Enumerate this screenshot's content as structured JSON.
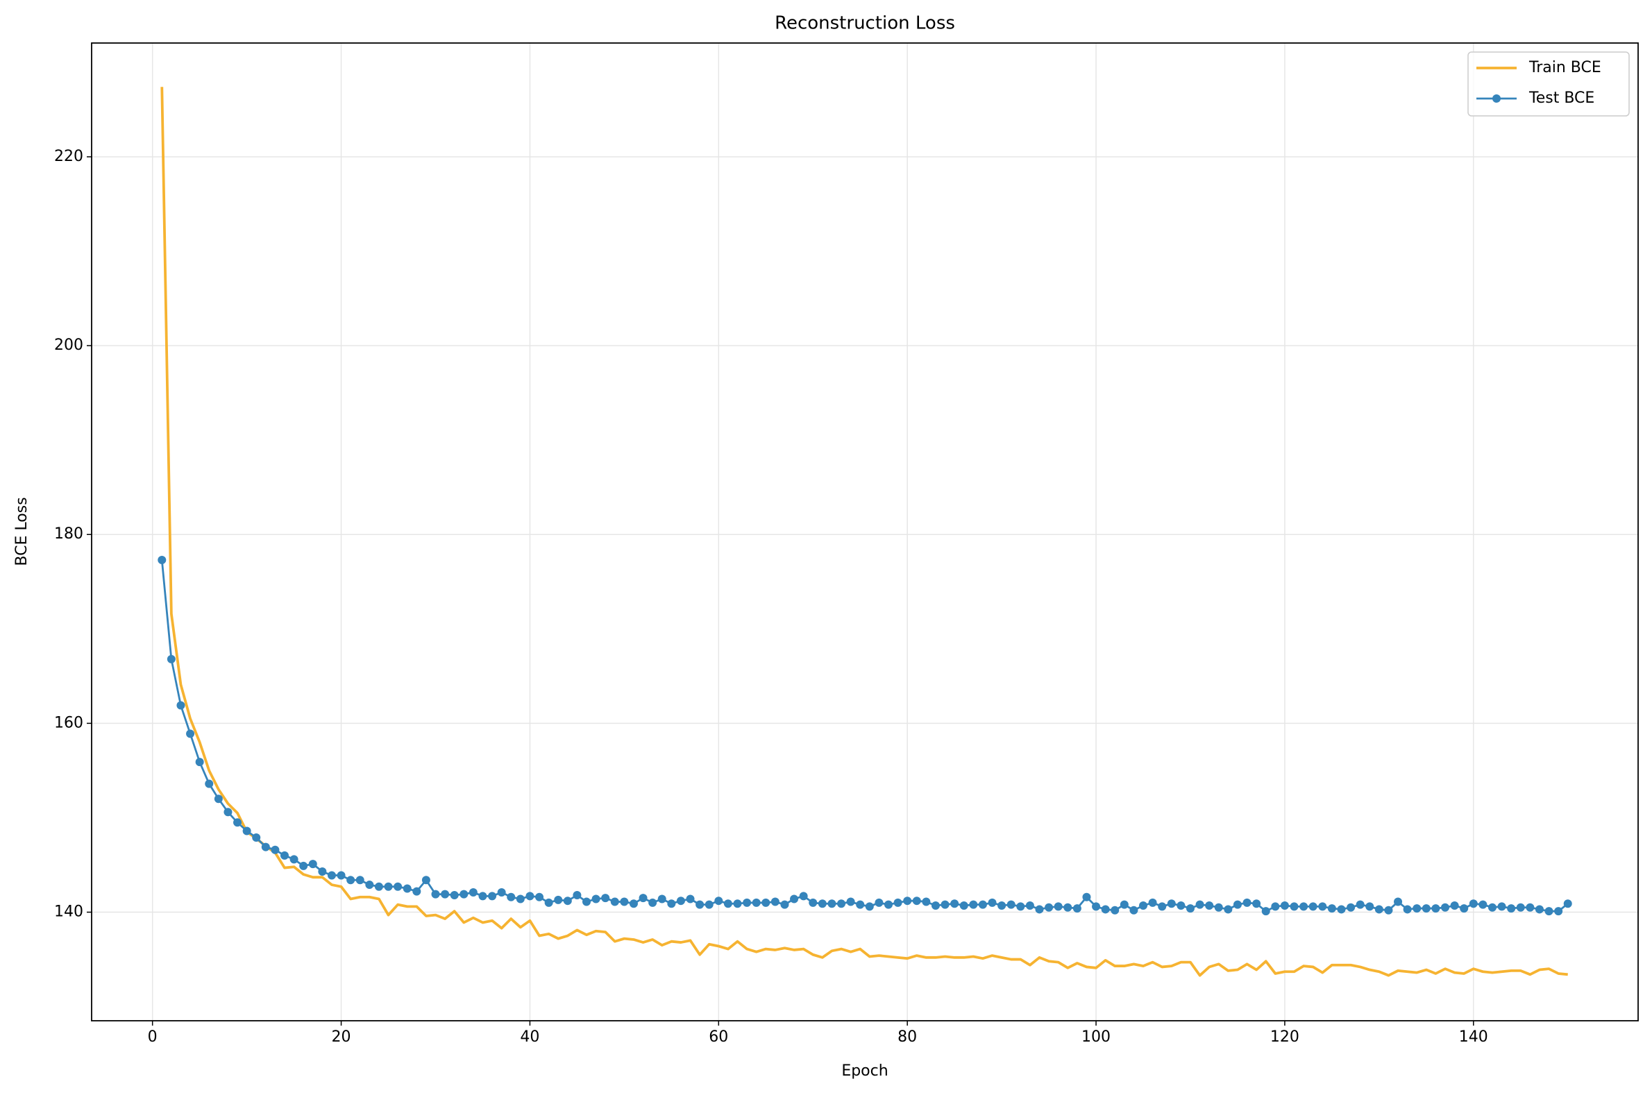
{
  "chart_data": {
    "type": "line",
    "title": "Reconstruction Loss",
    "x_label": "Epoch",
    "y_label": "BCE Loss",
    "x": [
      1,
      2,
      3,
      4,
      5,
      6,
      7,
      8,
      9,
      10,
      11,
      12,
      13,
      14,
      15,
      16,
      17,
      18,
      19,
      20,
      21,
      22,
      23,
      24,
      25,
      26,
      27,
      28,
      29,
      30,
      31,
      32,
      33,
      34,
      35,
      36,
      37,
      38,
      39,
      40,
      41,
      42,
      43,
      44,
      45,
      46,
      47,
      48,
      49,
      50,
      51,
      52,
      53,
      54,
      55,
      56,
      57,
      58,
      59,
      60,
      61,
      62,
      63,
      64,
      65,
      66,
      67,
      68,
      69,
      70,
      71,
      72,
      73,
      74,
      75,
      76,
      77,
      78,
      79,
      80,
      81,
      82,
      83,
      84,
      85,
      86,
      87,
      88,
      89,
      90,
      91,
      92,
      93,
      94,
      95,
      96,
      97,
      98,
      99,
      100,
      101,
      102,
      103,
      104,
      105,
      106,
      107,
      108,
      109,
      110,
      111,
      112,
      113,
      114,
      115,
      116,
      117,
      118,
      119,
      120,
      121,
      122,
      123,
      124,
      125,
      126,
      127,
      128,
      129,
      130,
      131,
      132,
      133,
      134,
      135,
      136,
      137,
      138,
      139,
      140,
      141,
      142,
      143,
      144,
      145,
      146,
      147,
      148,
      149,
      150
    ],
    "series": [
      {
        "name": "Train BCE",
        "color": "#f6b331",
        "marker": false,
        "values": [
          227.4,
          171.6,
          164.1,
          160.5,
          158,
          155,
          153,
          151.5,
          150.5,
          148.5,
          147.8,
          147,
          146.3,
          144.7,
          144.8,
          144,
          143.7,
          143.7,
          142.9,
          142.7,
          141.4,
          141.6,
          141.6,
          141.4,
          139.7,
          140.8,
          140.6,
          140.6,
          139.6,
          139.7,
          139.3,
          140.1,
          138.9,
          139.4,
          138.9,
          139.1,
          138.3,
          139.3,
          138.4,
          139.1,
          137.5,
          137.7,
          137.2,
          137.5,
          138.1,
          137.6,
          138,
          137.9,
          136.9,
          137.2,
          137.1,
          136.8,
          137.1,
          136.5,
          136.9,
          136.8,
          137,
          135.5,
          136.6,
          136.4,
          136.1,
          136.9,
          136.1,
          135.8,
          136.1,
          136,
          136.2,
          136,
          136.1,
          135.5,
          135.2,
          135.9,
          136.1,
          135.8,
          136.1,
          135.3,
          135.4,
          135.3,
          135.2,
          135.1,
          135.4,
          135.2,
          135.2,
          135.3,
          135.2,
          135.2,
          135.3,
          135.1,
          135.4,
          135.2,
          135,
          135,
          134.4,
          135.2,
          134.8,
          134.7,
          134.1,
          134.6,
          134.2,
          134.1,
          134.9,
          134.3,
          134.3,
          134.5,
          134.3,
          134.7,
          134.2,
          134.3,
          134.7,
          134.7,
          133.3,
          134.2,
          134.5,
          133.8,
          133.9,
          134.5,
          133.9,
          134.8,
          133.5,
          133.7,
          133.7,
          134.3,
          134.2,
          133.6,
          134.4,
          134.4,
          134.4,
          134.2,
          133.9,
          133.7,
          133.3,
          133.8,
          133.7,
          133.6,
          133.9,
          133.5,
          134,
          133.6,
          133.5,
          134,
          133.7,
          133.6,
          133.7,
          133.8,
          133.8,
          133.4,
          133.9,
          134,
          133.5,
          133.4
        ]
      },
      {
        "name": "Test BCE",
        "color": "#3584bb",
        "marker": true,
        "values": [
          177.3,
          166.8,
          161.9,
          158.9,
          155.9,
          153.6,
          152,
          150.6,
          149.5,
          148.6,
          147.9,
          146.9,
          146.6,
          146,
          145.6,
          144.9,
          145.1,
          144.3,
          143.9,
          143.9,
          143.4,
          143.4,
          142.9,
          142.7,
          142.7,
          142.7,
          142.5,
          142.2,
          143.4,
          141.9,
          141.9,
          141.8,
          141.9,
          142.1,
          141.7,
          141.7,
          142.1,
          141.6,
          141.4,
          141.7,
          141.6,
          141,
          141.3,
          141.2,
          141.8,
          141.1,
          141.4,
          141.5,
          141.1,
          141.1,
          140.9,
          141.5,
          141,
          141.4,
          140.9,
          141.2,
          141.4,
          140.8,
          140.8,
          141.2,
          140.9,
          140.9,
          141,
          141,
          141,
          141.1,
          140.8,
          141.4,
          141.7,
          141,
          140.9,
          140.9,
          140.9,
          141.1,
          140.8,
          140.6,
          141,
          140.8,
          141,
          141.2,
          141.2,
          141.1,
          140.7,
          140.8,
          140.9,
          140.7,
          140.8,
          140.8,
          141,
          140.7,
          140.8,
          140.6,
          140.7,
          140.3,
          140.5,
          140.6,
          140.5,
          140.4,
          141.6,
          140.6,
          140.3,
          140.2,
          140.8,
          140.2,
          140.7,
          141,
          140.6,
          140.9,
          140.7,
          140.4,
          140.8,
          140.7,
          140.5,
          140.3,
          140.8,
          141,
          140.9,
          140.1,
          140.6,
          140.7,
          140.6,
          140.6,
          140.6,
          140.6,
          140.4,
          140.3,
          140.5,
          140.8,
          140.6,
          140.3,
          140.2,
          141.1,
          140.3,
          140.4,
          140.4,
          140.4,
          140.5,
          140.7,
          140.4,
          140.9,
          140.8,
          140.5,
          140.6,
          140.4,
          140.5,
          140.5,
          140.3,
          140.1,
          140.1,
          140.9
        ]
      }
    ],
    "xlim": [
      -6.45,
      157.45
    ],
    "ylim": [
      128.5,
      232.05
    ],
    "xticks": [
      0,
      20,
      40,
      60,
      80,
      100,
      120,
      140
    ],
    "yticks": [
      140,
      160,
      180,
      200,
      220
    ],
    "grid": true,
    "legend": "upper right"
  }
}
